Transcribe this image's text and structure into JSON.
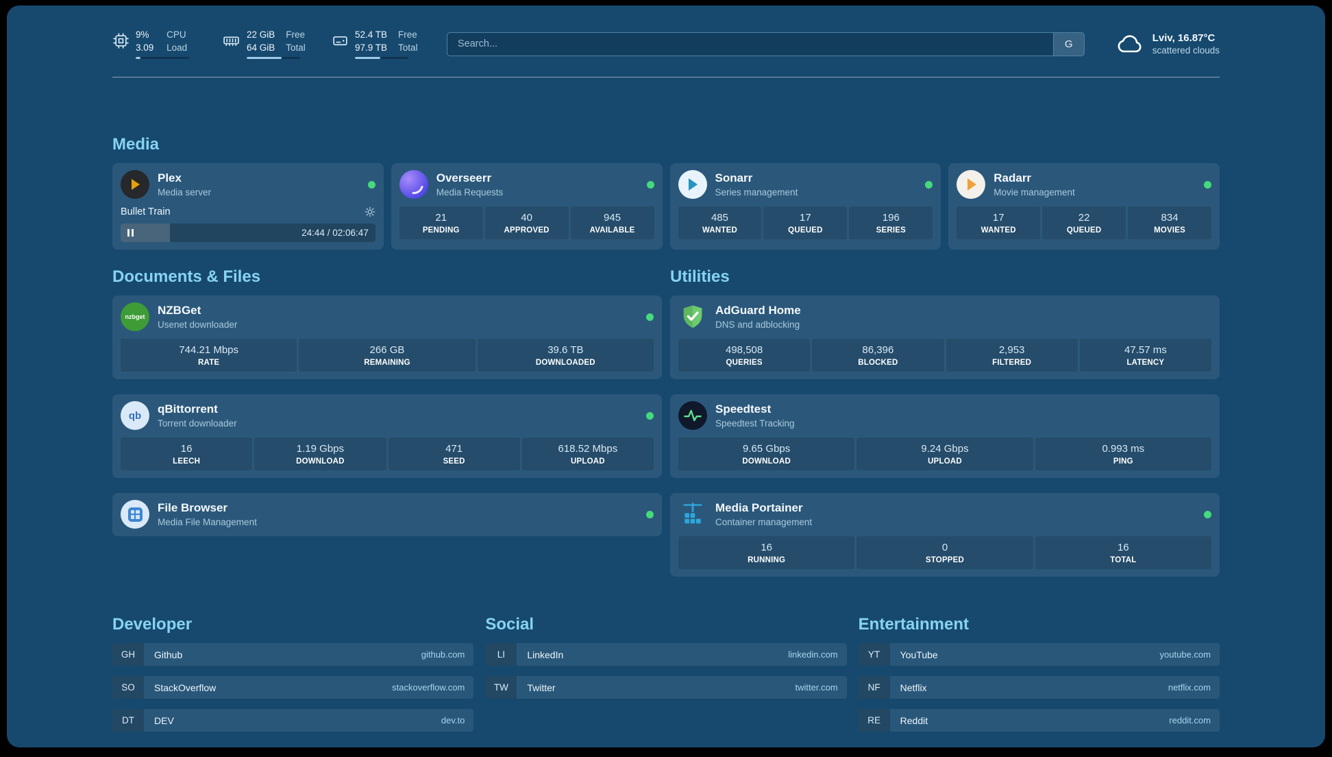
{
  "topbar": {
    "cpu": {
      "value1": "9%",
      "label1": "CPU",
      "value2": "3.09",
      "label2": "Load",
      "progress_pct": 9
    },
    "memory": {
      "value1": "22 GiB",
      "label1": "Free",
      "value2": "64 GiB",
      "label2": "Total",
      "progress_pct": 66
    },
    "disk": {
      "value1": "52.4 TB",
      "label1": "Free",
      "value2": "97.9 TB",
      "label2": "Total",
      "progress_pct": 47
    },
    "search": {
      "placeholder": "Search...",
      "button_label": "G"
    },
    "weather": {
      "location": "Lviv, 16.87°C",
      "condition": "scattered clouds"
    }
  },
  "media": {
    "section_title": "Media",
    "plex": {
      "title": "Plex",
      "subtitle": "Media server",
      "now_playing": "Bullet Train",
      "time": "24:44 / 02:06:47",
      "progress_pct": 19.5
    },
    "overseerr": {
      "title": "Overseerr",
      "subtitle": "Media Requests",
      "stats": [
        {
          "value": "21",
          "label": "PENDING"
        },
        {
          "value": "40",
          "label": "APPROVED"
        },
        {
          "value": "945",
          "label": "AVAILABLE"
        }
      ]
    },
    "sonarr": {
      "title": "Sonarr",
      "subtitle": "Series management",
      "stats": [
        {
          "value": "485",
          "label": "WANTED"
        },
        {
          "value": "17",
          "label": "QUEUED"
        },
        {
          "value": "196",
          "label": "SERIES"
        }
      ]
    },
    "radarr": {
      "title": "Radarr",
      "subtitle": "Movie management",
      "stats": [
        {
          "value": "17",
          "label": "WANTED"
        },
        {
          "value": "22",
          "label": "QUEUED"
        },
        {
          "value": "834",
          "label": "MOVIES"
        }
      ]
    }
  },
  "documents": {
    "section_title": "Documents & Files",
    "nzbget": {
      "title": "NZBGet",
      "subtitle": "Usenet downloader",
      "icon_text": "nzbget",
      "stats": [
        {
          "value": "744.21 Mbps",
          "label": "RATE"
        },
        {
          "value": "266 GB",
          "label": "REMAINING"
        },
        {
          "value": "39.6 TB",
          "label": "DOWNLOADED"
        }
      ]
    },
    "qbittorrent": {
      "title": "qBittorrent",
      "subtitle": "Torrent downloader",
      "icon_text": "qb",
      "stats": [
        {
          "value": "16",
          "label": "LEECH"
        },
        {
          "value": "1.19 Gbps",
          "label": "DOWNLOAD"
        },
        {
          "value": "471",
          "label": "SEED"
        },
        {
          "value": "618.52 Mbps",
          "label": "UPLOAD"
        }
      ]
    },
    "filebrowser": {
      "title": "File Browser",
      "subtitle": "Media File Management"
    }
  },
  "utilities": {
    "section_title": "Utilities",
    "adguard": {
      "title": "AdGuard Home",
      "subtitle": "DNS and adblocking",
      "stats": [
        {
          "value": "498,508",
          "label": "QUERIES"
        },
        {
          "value": "86,396",
          "label": "BLOCKED"
        },
        {
          "value": "2,953",
          "label": "FILTERED"
        },
        {
          "value": "47.57 ms",
          "label": "LATENCY"
        }
      ]
    },
    "speedtest": {
      "title": "Speedtest",
      "subtitle": "Speedtest Tracking",
      "stats": [
        {
          "value": "9.65 Gbps",
          "label": "DOWNLOAD"
        },
        {
          "value": "9.24 Gbps",
          "label": "UPLOAD"
        },
        {
          "value": "0.993 ms",
          "label": "PING"
        }
      ]
    },
    "portainer": {
      "title": "Media Portainer",
      "subtitle": "Container management",
      "stats": [
        {
          "value": "16",
          "label": "RUNNING"
        },
        {
          "value": "0",
          "label": "STOPPED"
        },
        {
          "value": "16",
          "label": "TOTAL"
        }
      ]
    }
  },
  "bookmarks": [
    {
      "section_title": "Developer",
      "items": [
        {
          "abbr": "GH",
          "name": "Github",
          "url": "github.com"
        },
        {
          "abbr": "SO",
          "name": "StackOverflow",
          "url": "stackoverflow.com"
        },
        {
          "abbr": "DT",
          "name": "DEV",
          "url": "dev.to"
        }
      ]
    },
    {
      "section_title": "Social",
      "items": [
        {
          "abbr": "LI",
          "name": "LinkedIn",
          "url": "linkedin.com"
        },
        {
          "abbr": "TW",
          "name": "Twitter",
          "url": "twitter.com"
        }
      ]
    },
    {
      "section_title": "Entertainment",
      "items": [
        {
          "abbr": "YT",
          "name": "YouTube",
          "url": "youtube.com"
        },
        {
          "abbr": "NF",
          "name": "Netflix",
          "url": "netflix.com"
        },
        {
          "abbr": "RE",
          "name": "Reddit",
          "url": "reddit.com"
        }
      ]
    }
  ],
  "colors": {
    "status_green": "#44da7d",
    "heading_blue": "#87d3f3",
    "background": "#17496e"
  }
}
